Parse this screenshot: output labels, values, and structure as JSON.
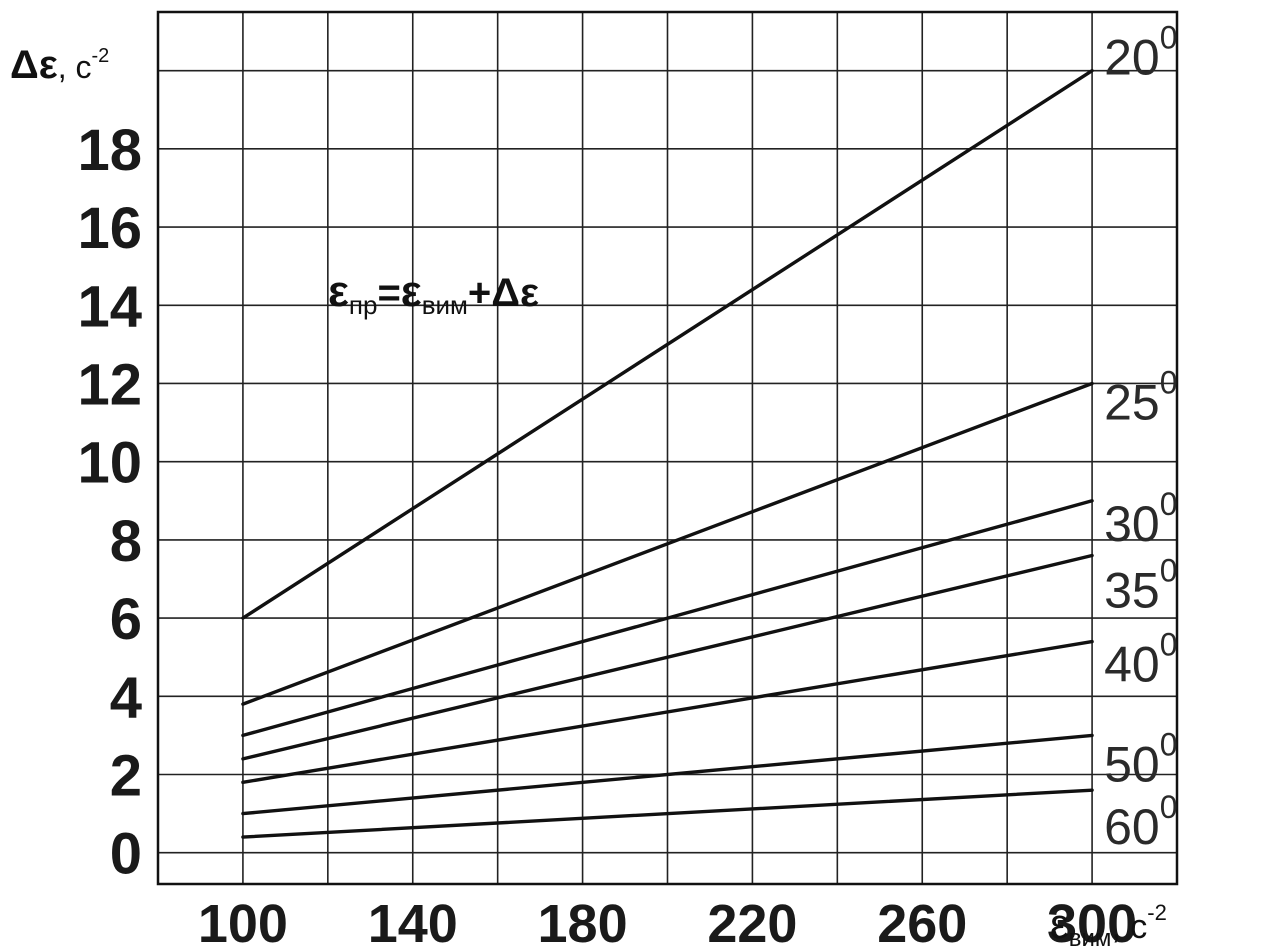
{
  "chart_data": {
    "type": "line",
    "equation": {
      "lhs": "ε",
      "lhs_sub": "пр",
      "eq": "=",
      "rhs_1": "ε",
      "rhs_1_sub": "вим",
      "rhs_2": "+Δε"
    },
    "ylabel": {
      "symbol": "Δε",
      "unit": ", с",
      "unit_exp": "-2"
    },
    "xlabel": {
      "symbol": "ε",
      "sub": "вим",
      "unit": ", с",
      "unit_exp": "-2"
    },
    "x_ticks": [
      "100",
      "140",
      "180",
      "220",
      "260",
      "300"
    ],
    "y_ticks": [
      "0",
      "2",
      "4",
      "6",
      "8",
      "10",
      "12",
      "14",
      "16",
      "18"
    ],
    "xlim": [
      80,
      320
    ],
    "ylim": [
      -0.8,
      21.5
    ],
    "grid": true,
    "grid_x": [
      100,
      120,
      140,
      160,
      180,
      200,
      220,
      240,
      260,
      280,
      300,
      320
    ],
    "grid_y": [
      0,
      2,
      4,
      6,
      8,
      10,
      12,
      14,
      16,
      18,
      20
    ],
    "series": [
      {
        "name": "20",
        "sup": "0",
        "x": [
          100,
          300
        ],
        "y": [
          6.0,
          20.0
        ]
      },
      {
        "name": "25",
        "sup": "0",
        "x": [
          100,
          300
        ],
        "y": [
          3.8,
          12.0
        ]
      },
      {
        "name": "30",
        "sup": "0",
        "x": [
          100,
          300
        ],
        "y": [
          3.0,
          9.0
        ]
      },
      {
        "name": "35",
        "sup": "0",
        "x": [
          100,
          300
        ],
        "y": [
          2.4,
          7.6
        ]
      },
      {
        "name": "40",
        "sup": "0",
        "x": [
          100,
          300
        ],
        "y": [
          1.8,
          5.4
        ]
      },
      {
        "name": "50",
        "sup": "0",
        "x": [
          100,
          300
        ],
        "y": [
          1.0,
          3.0
        ]
      },
      {
        "name": "60",
        "sup": "0",
        "x": [
          100,
          300
        ],
        "y": [
          0.4,
          1.6
        ]
      }
    ]
  }
}
